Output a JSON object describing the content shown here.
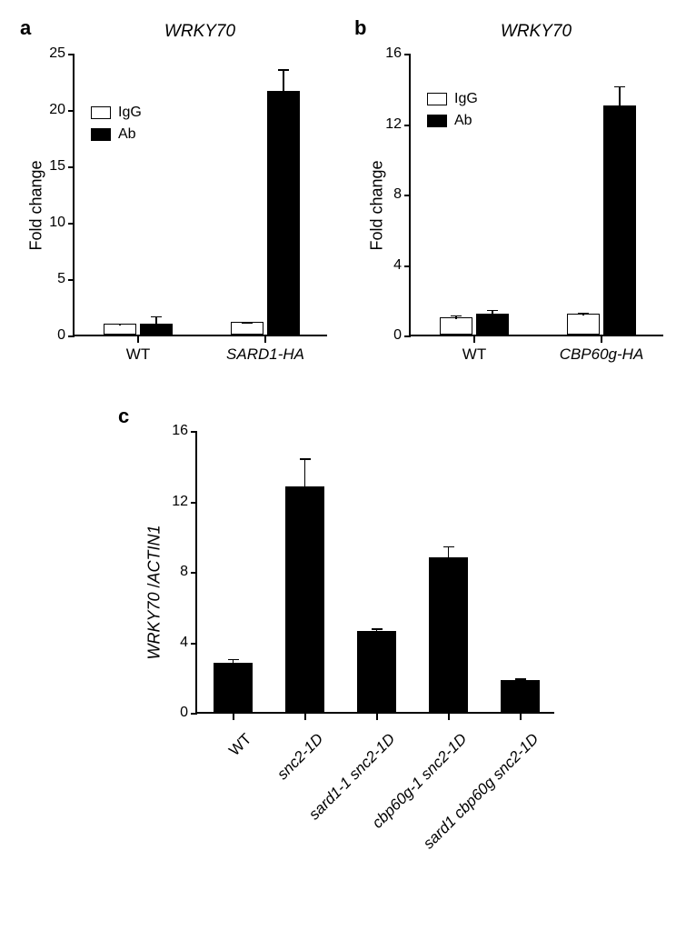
{
  "panel_a": {
    "label": "a",
    "title": "WRKY70",
    "ylabel": "Fold change",
    "ylim": [
      0,
      25
    ],
    "yticks": [
      0,
      5,
      10,
      15,
      20,
      25
    ],
    "categories": [
      "WT",
      "SARD1-HA"
    ],
    "category_italic": [
      false,
      true
    ],
    "series": [
      {
        "name": "IgG",
        "color": "#ffffff",
        "values": [
          1.0,
          1.1
        ],
        "errors": [
          0.15,
          0.15
        ]
      },
      {
        "name": "Ab",
        "color": "#000000",
        "values": [
          1.0,
          21.6
        ],
        "errors": [
          0.8,
          2.1
        ]
      }
    ],
    "bar_width": 0.35,
    "legend": [
      "IgG",
      "Ab"
    ]
  },
  "panel_b": {
    "label": "b",
    "title": "WRKY70",
    "ylabel": "Fold change",
    "ylim": [
      0,
      16
    ],
    "yticks": [
      0,
      4,
      8,
      12,
      16
    ],
    "categories": [
      "WT",
      "CBP60g-HA"
    ],
    "category_italic": [
      false,
      true
    ],
    "series": [
      {
        "name": "IgG",
        "color": "#ffffff",
        "values": [
          1.0,
          1.2
        ],
        "errors": [
          0.2,
          0.15
        ]
      },
      {
        "name": "Ab",
        "color": "#000000",
        "values": [
          1.2,
          13.0
        ],
        "errors": [
          0.3,
          1.2
        ]
      }
    ],
    "bar_width": 0.35,
    "legend": [
      "IgG",
      "Ab"
    ]
  },
  "panel_c": {
    "label": "c",
    "ylabel_html": "WRKY70 /ACTIN1",
    "ylim": [
      0,
      16
    ],
    "yticks": [
      0,
      4,
      8,
      12,
      16
    ],
    "categories": [
      "WT",
      "snc2-1D",
      "sard1-1 snc2-1D",
      "cbp60g-1 snc2-1D",
      "sard1 cbp60g snc2-1D"
    ],
    "values": [
      2.8,
      12.8,
      4.6,
      8.8,
      1.8
    ],
    "errors": [
      0.3,
      1.7,
      0.25,
      0.7,
      0.2
    ],
    "bar_color": "#000000",
    "bar_width": 0.5
  },
  "style": {
    "text_color": "#000000",
    "axis_width": 2,
    "font_family": "Arial",
    "panel_label_fontsize": 22,
    "title_fontsize": 19,
    "axis_label_fontsize": 18,
    "tick_fontsize": 16
  }
}
